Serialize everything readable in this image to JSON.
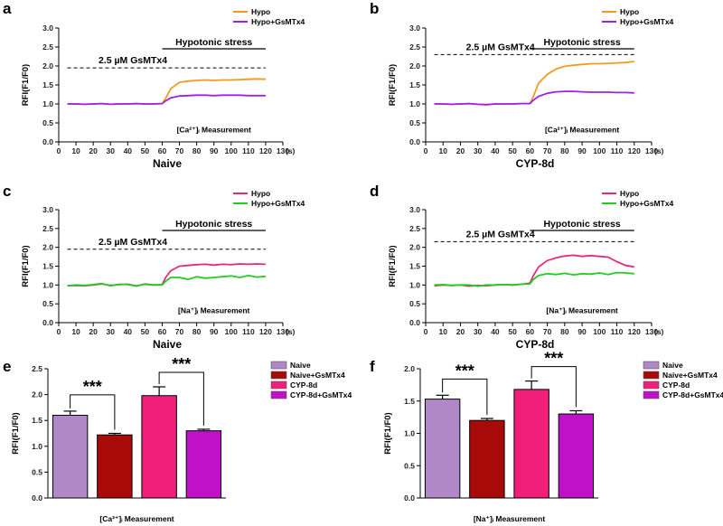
{
  "figure": {
    "line_panels": [
      {
        "label": "a",
        "title": "Naive",
        "measurement": "[Ca²⁺]ᵢ  Measurement",
        "stress_label": "Hypotonic stress",
        "drug_label": "2.5 µM GsMTx4",
        "x_unit": "(s)",
        "ylabel": "RFI(F1/F0)"
      },
      {
        "label": "b",
        "title": "CYP-8d",
        "measurement": "[Ca²⁺]ᵢ  Measurement",
        "stress_label": "Hypotonic stress",
        "drug_label": "2.5 µM GsMTx4",
        "x_unit": "(s)",
        "ylabel": "RFI(F1/F0)"
      },
      {
        "label": "c",
        "title": "Naive",
        "measurement": "[Na⁺]ᵢ  Measurement",
        "stress_label": "Hypotonic stress",
        "drug_label": "2.5 µM GsMTx4",
        "x_unit": "(s)",
        "ylabel": "RFI(F1/F0)"
      },
      {
        "label": "d",
        "title": "CYP-8d",
        "measurement": "[Na⁺]ᵢ  Measurement",
        "stress_label": "Hypotonic stress",
        "drug_label": "2.5 µM GsMTx4",
        "x_unit": "(s)",
        "ylabel": "RFI(F1/F0)"
      }
    ],
    "bar_panels": [
      {
        "label": "e",
        "xlabel": "[Ca²⁺]ᵢ  Measurement",
        "ylabel": "RFI(F1/F0)",
        "significance": [
          "***",
          "***"
        ]
      },
      {
        "label": "f",
        "xlabel": "[Na⁺]ᵢ  Measurement",
        "ylabel": "RFI(F1/F0)",
        "significance": [
          "***",
          "***"
        ]
      }
    ]
  },
  "chart_data": [
    {
      "type": "line",
      "panel": "a",
      "xlim": [
        0,
        130
      ],
      "ylim": [
        0.0,
        3.0
      ],
      "x_ticks": [
        0,
        10,
        20,
        30,
        40,
        50,
        60,
        70,
        80,
        90,
        100,
        110,
        120,
        130
      ],
      "y_ticks": [
        "0.0",
        "0.5",
        "1.0",
        "1.5",
        "2.0",
        "2.5",
        "3.0"
      ],
      "stress_range": [
        60,
        120
      ],
      "drug_line_y": 1.95,
      "x": [
        5,
        10,
        15,
        20,
        25,
        30,
        35,
        40,
        45,
        50,
        55,
        60,
        62,
        65,
        70,
        75,
        80,
        85,
        90,
        95,
        100,
        105,
        110,
        115,
        120
      ],
      "series": [
        {
          "name": "Hypo",
          "color": "#f39a1e",
          "values": [
            1.0,
            1.0,
            0.99,
            1.0,
            1.01,
            0.99,
            1.0,
            1.0,
            1.01,
            1.0,
            1.0,
            1.01,
            1.15,
            1.4,
            1.57,
            1.6,
            1.62,
            1.63,
            1.62,
            1.63,
            1.63,
            1.64,
            1.65,
            1.66,
            1.65
          ]
        },
        {
          "name": "Hypo+GsMTx4",
          "color": "#a020e8",
          "values": [
            1.0,
            1.0,
            0.99,
            1.0,
            1.01,
            0.99,
            1.0,
            1.0,
            1.01,
            1.0,
            1.0,
            1.01,
            1.08,
            1.16,
            1.21,
            1.22,
            1.23,
            1.23,
            1.22,
            1.23,
            1.23,
            1.23,
            1.22,
            1.22,
            1.22
          ]
        }
      ]
    },
    {
      "type": "line",
      "panel": "b",
      "xlim": [
        0,
        130
      ],
      "ylim": [
        0.0,
        3.0
      ],
      "x_ticks": [
        0,
        10,
        20,
        30,
        40,
        50,
        60,
        70,
        80,
        90,
        100,
        110,
        120,
        130
      ],
      "y_ticks": [
        "0.0",
        "0.5",
        "1.0",
        "1.5",
        "2.0",
        "2.5",
        "3.0"
      ],
      "stress_range": [
        60,
        120
      ],
      "drug_line_y": 2.3,
      "x": [
        5,
        10,
        15,
        20,
        25,
        30,
        35,
        40,
        45,
        50,
        55,
        60,
        62,
        65,
        70,
        75,
        80,
        85,
        90,
        95,
        100,
        105,
        110,
        115,
        120
      ],
      "series": [
        {
          "name": "Hypo",
          "color": "#f39a1e",
          "values": [
            1.0,
            1.0,
            0.99,
            1.0,
            1.01,
            0.99,
            0.98,
            1.0,
            1.0,
            1.0,
            1.01,
            1.01,
            1.2,
            1.55,
            1.78,
            1.92,
            1.99,
            2.02,
            2.04,
            2.06,
            2.06,
            2.07,
            2.08,
            2.09,
            2.12
          ]
        },
        {
          "name": "Hypo+GsMTx4",
          "color": "#a020e8",
          "values": [
            1.0,
            1.0,
            0.99,
            1.0,
            1.01,
            0.99,
            0.98,
            1.0,
            1.0,
            1.0,
            1.01,
            1.01,
            1.1,
            1.2,
            1.28,
            1.32,
            1.33,
            1.33,
            1.32,
            1.31,
            1.31,
            1.31,
            1.3,
            1.3,
            1.29
          ]
        }
      ]
    },
    {
      "type": "line",
      "panel": "c",
      "xlim": [
        0,
        130
      ],
      "ylim": [
        0.0,
        3.0
      ],
      "x_ticks": [
        0,
        10,
        20,
        30,
        40,
        50,
        60,
        70,
        80,
        90,
        100,
        110,
        120,
        130
      ],
      "y_ticks": [
        "0.0",
        "0.5",
        "1.0",
        "1.5",
        "2.0",
        "2.5",
        "3.0"
      ],
      "stress_range": [
        60,
        120
      ],
      "drug_line_y": 1.95,
      "x": [
        5,
        10,
        15,
        20,
        25,
        30,
        35,
        40,
        45,
        50,
        55,
        60,
        62,
        65,
        70,
        75,
        80,
        85,
        90,
        95,
        100,
        105,
        110,
        115,
        120
      ],
      "series": [
        {
          "name": "Hypo",
          "color": "#e8287a",
          "values": [
            0.98,
            0.99,
            0.98,
            1.0,
            1.03,
            0.99,
            1.01,
            1.02,
            0.98,
            1.02,
            1.0,
            1.01,
            1.2,
            1.38,
            1.5,
            1.52,
            1.54,
            1.55,
            1.53,
            1.55,
            1.54,
            1.56,
            1.55,
            1.56,
            1.55
          ]
        },
        {
          "name": "Hypo+GsMTx4",
          "color": "#22cc22",
          "values": [
            0.98,
            1.0,
            0.99,
            1.01,
            1.04,
            0.98,
            1.02,
            1.01,
            0.97,
            1.03,
            1.0,
            1.0,
            1.1,
            1.2,
            1.2,
            1.15,
            1.22,
            1.18,
            1.2,
            1.22,
            1.24,
            1.2,
            1.25,
            1.21,
            1.23
          ]
        }
      ]
    },
    {
      "type": "line",
      "panel": "d",
      "xlim": [
        0,
        130
      ],
      "ylim": [
        0.0,
        3.0
      ],
      "x_ticks": [
        0,
        10,
        20,
        30,
        40,
        50,
        60,
        70,
        80,
        90,
        100,
        110,
        120,
        130
      ],
      "y_ticks": [
        "0.0",
        "0.5",
        "1.0",
        "1.5",
        "2.0",
        "2.5",
        "3.0"
      ],
      "stress_range": [
        60,
        120
      ],
      "drug_line_y": 2.15,
      "x": [
        5,
        10,
        15,
        20,
        25,
        30,
        35,
        40,
        45,
        50,
        55,
        60,
        62,
        65,
        70,
        75,
        80,
        85,
        90,
        95,
        100,
        105,
        110,
        115,
        120
      ],
      "series": [
        {
          "name": "Hypo",
          "color": "#e8287a",
          "values": [
            0.98,
            1.0,
            0.99,
            1.0,
            0.97,
            0.99,
            0.98,
            1.0,
            1.01,
            1.0,
            1.02,
            1.05,
            1.25,
            1.48,
            1.65,
            1.72,
            1.77,
            1.79,
            1.76,
            1.78,
            1.76,
            1.74,
            1.62,
            1.52,
            1.48
          ]
        },
        {
          "name": "Hypo+GsMTx4",
          "color": "#22cc22",
          "values": [
            1.0,
            1.01,
            0.99,
            1.0,
            1.0,
            0.97,
            1.0,
            1.0,
            1.01,
            1.0,
            1.02,
            1.03,
            1.15,
            1.25,
            1.3,
            1.28,
            1.31,
            1.27,
            1.3,
            1.29,
            1.32,
            1.28,
            1.33,
            1.32,
            1.3
          ]
        }
      ]
    },
    {
      "type": "bar",
      "panel": "e",
      "ylim": [
        0.0,
        2.5
      ],
      "y_ticks": [
        "0.0",
        "0.5",
        "1.0",
        "1.5",
        "2.0",
        "2.5"
      ],
      "categories": [
        "Naive",
        "Naive+GsMTx4",
        "CYP-8d",
        "CYP-8d+GsMTx4"
      ],
      "colors": [
        "#b088c8",
        "#a80a0a",
        "#f0207a",
        "#c010c8"
      ],
      "values": [
        1.6,
        1.22,
        1.98,
        1.3
      ],
      "errors": [
        0.08,
        0.03,
        0.17,
        0.03
      ],
      "comparisons": [
        [
          0,
          1
        ],
        [
          2,
          3
        ]
      ]
    },
    {
      "type": "bar",
      "panel": "f",
      "ylim": [
        0.0,
        2.0
      ],
      "y_ticks": [
        "0.0",
        "0.5",
        "1.0",
        "1.5",
        "2.0"
      ],
      "categories": [
        "Naive",
        "Naive+GsMTx4",
        "CYP-8d",
        "CYP-8d+GsMTx4"
      ],
      "colors": [
        "#b088c8",
        "#a80a0a",
        "#f0207a",
        "#c010c8"
      ],
      "values": [
        1.53,
        1.2,
        1.68,
        1.3
      ],
      "errors": [
        0.06,
        0.03,
        0.13,
        0.05
      ],
      "comparisons": [
        [
          0,
          1
        ],
        [
          2,
          3
        ]
      ]
    }
  ]
}
